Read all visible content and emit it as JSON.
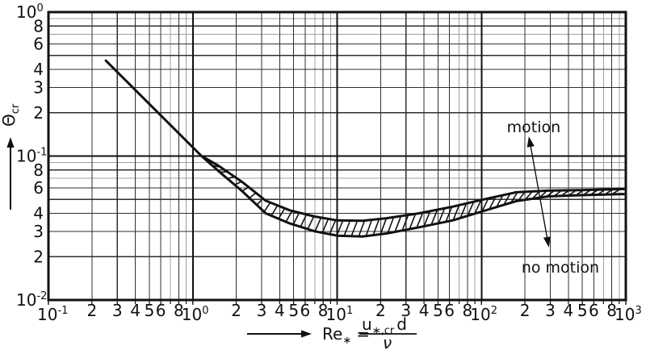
{
  "chart_data": {
    "type": "line",
    "description_labels": {
      "motion": "motion",
      "no_motion": "no motion"
    },
    "x_axis": {
      "scale": "log",
      "min": 0.1,
      "max": 1000,
      "decade_exponents": [
        "-1",
        "0",
        "1",
        "2",
        "3"
      ],
      "decade_base": "10",
      "labeled_minors": [
        2,
        3,
        4,
        5,
        6,
        8
      ],
      "grid_minors": [
        2,
        3,
        4,
        5,
        6,
        7,
        8,
        9
      ],
      "light_minors": [
        7,
        9
      ]
    },
    "y_axis": {
      "scale": "log",
      "min": 0.01,
      "max": 1,
      "decade_exponents": [
        "0",
        "-1",
        "-2"
      ],
      "decade_base": "10",
      "labeled_minors": [
        8,
        6,
        4,
        3,
        2
      ],
      "grid_minors": [
        2,
        3,
        4,
        5,
        6,
        7,
        8,
        9
      ],
      "light_minors": [
        7,
        9
      ]
    },
    "x_title": {
      "sym_base": "Re",
      "sym_sub": "∗",
      "equals": "=",
      "num_base": "u",
      "num_sub": "∗,cr",
      "num_tail": "d",
      "den": "ν"
    },
    "y_title": {
      "base": "Θ",
      "sub": "cr"
    },
    "series": {
      "approach_line": {
        "name": "threshold-line",
        "points": [
          [
            0.25,
            0.46
          ],
          [
            1.15,
            0.1
          ]
        ]
      },
      "band_upper": {
        "name": "shields-band-upper",
        "points": [
          [
            1.15,
            0.1
          ],
          [
            1.5,
            0.086
          ],
          [
            2.2,
            0.066
          ],
          [
            3.2,
            0.049
          ],
          [
            4.7,
            0.042
          ],
          [
            7,
            0.038
          ],
          [
            10,
            0.0357
          ],
          [
            15,
            0.0355
          ],
          [
            22,
            0.037
          ],
          [
            37,
            0.04
          ],
          [
            63,
            0.0445
          ],
          [
            104,
            0.05
          ],
          [
            174,
            0.056
          ],
          [
            290,
            0.0575
          ],
          [
            490,
            0.058
          ],
          [
            980,
            0.059
          ]
        ]
      },
      "band_lower": {
        "name": "shields-band-lower",
        "points": [
          [
            1.15,
            0.1
          ],
          [
            1.5,
            0.079
          ],
          [
            2.2,
            0.057
          ],
          [
            3.2,
            0.04
          ],
          [
            4.7,
            0.034
          ],
          [
            7,
            0.03
          ],
          [
            10,
            0.028
          ],
          [
            15,
            0.0276
          ],
          [
            22,
            0.029
          ],
          [
            37,
            0.032
          ],
          [
            63,
            0.0357
          ],
          [
            104,
            0.0416
          ],
          [
            174,
            0.0486
          ],
          [
            290,
            0.0525
          ],
          [
            490,
            0.0535
          ],
          [
            980,
            0.0545
          ]
        ]
      }
    },
    "annotations": {
      "motion": {
        "label": "motion",
        "at": [
          230,
          0.16
        ]
      },
      "no_motion": {
        "label": "no motion",
        "at": [
          352,
          0.017
        ]
      },
      "arrow": {
        "from": [
          213,
          0.137
        ],
        "to": [
          293,
          0.0232
        ]
      }
    },
    "colors": {
      "ink": "#111111",
      "grid_labeled": "#2f2f2f",
      "grid_light": "#a0a0a0",
      "background": "#ffffff"
    }
  }
}
